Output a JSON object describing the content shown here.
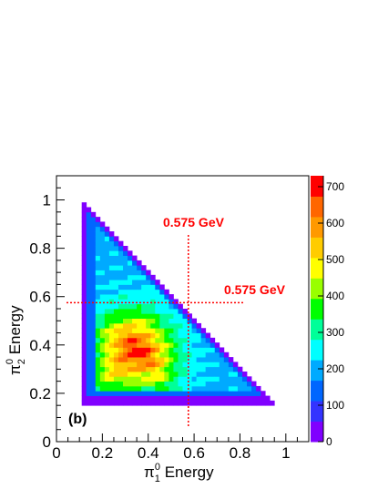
{
  "chart_data": {
    "type": "heatmap",
    "panel_label": "(b)",
    "xlabel": {
      "base": "π",
      "sup": "0",
      "sub": "1",
      "suffix": " Energy"
    },
    "ylabel": {
      "base": "π",
      "sup": "0",
      "sub": "2",
      "suffix": " Energy"
    },
    "xlim": [
      0,
      1.1
    ],
    "ylim": [
      0,
      1.1
    ],
    "x_ticks": [
      "0",
      "0.2",
      "0.4",
      "0.6",
      "0.8",
      "1"
    ],
    "y_ticks": [
      "0",
      "0.2",
      "0.4",
      "0.6",
      "0.8",
      "1"
    ],
    "colorbar": {
      "range": [
        0,
        730
      ],
      "ticks": [
        "0",
        "100",
        "200",
        "300",
        "400",
        "500",
        "600",
        "700"
      ],
      "palette": [
        "#8000ff",
        "#3333ff",
        "#0066ff",
        "#00aaff",
        "#00ffff",
        "#00ff99",
        "#00ff00",
        "#99ff00",
        "#ffff00",
        "#ffcc00",
        "#ff9900",
        "#ff6600",
        "#ff0000"
      ]
    },
    "bin_width": 0.02,
    "region": {
      "x_min": 0.11,
      "y_min": 0.15,
      "sum_max": 1.11
    },
    "peak": {
      "x": 0.33,
      "y": 0.35,
      "value": 720
    },
    "cut_lines": [
      {
        "orientation": "vertical",
        "value": 0.575,
        "label": "0.575 GeV",
        "color": "#ff0000"
      },
      {
        "orientation": "horizontal",
        "value": 0.575,
        "label": "0.575 GeV",
        "color": "#ff0000"
      }
    ]
  }
}
